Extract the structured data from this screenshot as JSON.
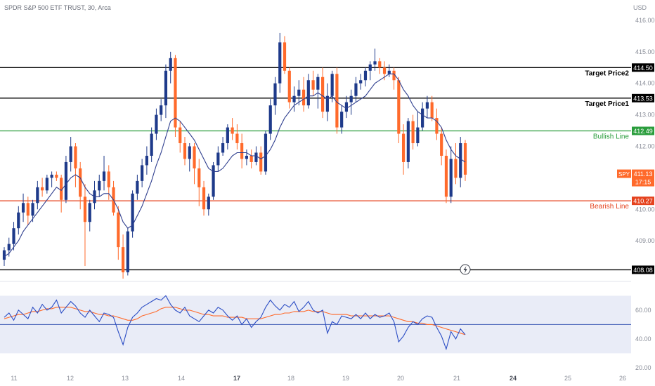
{
  "header": {
    "symbol_line": "SPDR S&P 500 ETF TRUST, 30, Arca",
    "currency": "USD"
  },
  "colors": {
    "up": "#1e3a8a",
    "down": "#ff6a2b",
    "ma": "#2f3f8f",
    "rsi": "#2a4cc4",
    "rsi_ma": "#ff6a2b",
    "target": "#000000",
    "bullish": "#2a9d3c",
    "bearish": "#e5421d",
    "rsi_band": "#e9ecf7",
    "price_tag": "#ff6a2b"
  },
  "chart_data": [
    {
      "type": "candlestick",
      "title": "",
      "ylim": [
        407.8,
        416.2
      ],
      "y_ticks": [
        "416.00",
        "415.00",
        "414.00",
        "413.00",
        "412.00",
        "411.00",
        "410.00",
        "409.00"
      ],
      "x_ticks": [
        "11",
        "12",
        "13",
        "14",
        "17",
        "18",
        "19",
        "20",
        "21",
        "24",
        "25",
        "26"
      ],
      "grid": false,
      "candles": [
        [
          408.4,
          408.8,
          408.2,
          408.7
        ],
        [
          408.7,
          409.1,
          408.5,
          408.9
        ],
        [
          408.9,
          409.6,
          408.7,
          409.4
        ],
        [
          409.4,
          410.1,
          409.2,
          409.9
        ],
        [
          409.9,
          410.5,
          409.6,
          410.2
        ],
        [
          410.2,
          410.4,
          409.5,
          409.8
        ],
        [
          409.8,
          410.3,
          409.6,
          410.2
        ],
        [
          410.2,
          410.9,
          410.0,
          410.7
        ],
        [
          410.7,
          411.0,
          410.4,
          410.6
        ],
        [
          410.6,
          411.1,
          410.5,
          411.0
        ],
        [
          411.0,
          411.2,
          410.7,
          411.1
        ],
        [
          411.1,
          411.2,
          410.9,
          411.0
        ],
        [
          411.0,
          411.1,
          409.9,
          410.3
        ],
        [
          410.3,
          411.7,
          410.2,
          411.5
        ],
        [
          411.5,
          412.3,
          411.2,
          412.0
        ],
        [
          412.0,
          412.1,
          410.7,
          411.3
        ],
        [
          411.3,
          411.5,
          410.0,
          410.4
        ],
        [
          410.4,
          410.8,
          408.2,
          409.6
        ],
        [
          409.6,
          410.3,
          409.3,
          410.2
        ],
        [
          410.2,
          410.9,
          410.0,
          410.6
        ],
        [
          410.6,
          411.1,
          410.4,
          410.9
        ],
        [
          410.9,
          411.7,
          410.6,
          411.2
        ],
        [
          411.2,
          411.4,
          410.3,
          410.7
        ],
        [
          410.7,
          410.9,
          409.8,
          409.9
        ],
        [
          409.9,
          410.1,
          408.4,
          408.8
        ],
        [
          408.8,
          409.2,
          407.8,
          408.0
        ],
        [
          408.0,
          409.4,
          407.9,
          409.3
        ],
        [
          409.3,
          410.6,
          409.1,
          410.5
        ],
        [
          410.5,
          411.1,
          410.3,
          410.9
        ],
        [
          410.9,
          411.6,
          410.7,
          411.4
        ],
        [
          411.4,
          412.0,
          411.1,
          411.7
        ],
        [
          411.7,
          412.6,
          411.5,
          412.4
        ],
        [
          412.4,
          413.2,
          412.2,
          413.0
        ],
        [
          413.0,
          413.5,
          412.8,
          413.3
        ],
        [
          413.3,
          414.6,
          412.9,
          414.4
        ],
        [
          414.4,
          415.0,
          414.0,
          414.8
        ],
        [
          414.8,
          414.9,
          412.3,
          412.6
        ],
        [
          412.6,
          412.8,
          411.8,
          412.1
        ],
        [
          412.1,
          412.3,
          411.4,
          411.6
        ],
        [
          411.6,
          412.1,
          411.2,
          412.0
        ],
        [
          412.0,
          412.1,
          410.8,
          411.3
        ],
        [
          411.3,
          411.6,
          410.1,
          410.7
        ],
        [
          410.7,
          410.9,
          409.8,
          410.0
        ],
        [
          410.0,
          410.5,
          409.8,
          410.4
        ],
        [
          410.4,
          411.5,
          410.3,
          411.4
        ],
        [
          411.4,
          412.0,
          411.2,
          411.8
        ],
        [
          411.8,
          412.3,
          411.7,
          412.1
        ],
        [
          412.1,
          412.7,
          411.9,
          412.6
        ],
        [
          412.6,
          412.9,
          412.2,
          412.4
        ],
        [
          412.4,
          412.7,
          411.9,
          412.1
        ],
        [
          412.1,
          412.4,
          411.3,
          411.6
        ],
        [
          411.6,
          411.9,
          411.4,
          411.7
        ],
        [
          411.7,
          411.9,
          411.3,
          411.5
        ],
        [
          411.5,
          412.0,
          411.4,
          411.8
        ],
        [
          411.8,
          412.0,
          411.1,
          411.2
        ],
        [
          411.2,
          412.5,
          411.1,
          412.4
        ],
        [
          412.4,
          413.5,
          412.2,
          413.3
        ],
        [
          413.3,
          414.2,
          413.0,
          414.0
        ],
        [
          414.0,
          415.6,
          413.7,
          415.3
        ],
        [
          415.3,
          415.5,
          414.3,
          414.4
        ],
        [
          414.4,
          414.5,
          413.2,
          413.4
        ],
        [
          413.4,
          413.9,
          413.1,
          413.6
        ],
        [
          413.6,
          414.1,
          413.3,
          413.8
        ],
        [
          413.8,
          414.2,
          413.1,
          413.3
        ],
        [
          413.3,
          414.3,
          413.2,
          414.1
        ],
        [
          414.1,
          414.4,
          413.6,
          413.8
        ],
        [
          413.8,
          414.3,
          413.2,
          414.2
        ],
        [
          414.2,
          414.5,
          412.9,
          413.1
        ],
        [
          413.1,
          414.0,
          412.8,
          413.6
        ],
        [
          413.6,
          414.4,
          413.4,
          414.3
        ],
        [
          414.3,
          414.5,
          412.4,
          412.6
        ],
        [
          412.6,
          413.3,
          412.4,
          413.1
        ],
        [
          413.1,
          413.6,
          412.9,
          413.4
        ],
        [
          413.4,
          413.8,
          413.0,
          413.6
        ],
        [
          413.6,
          414.2,
          413.4,
          414.0
        ],
        [
          414.0,
          414.3,
          413.8,
          414.1
        ],
        [
          414.1,
          414.5,
          413.9,
          414.4
        ],
        [
          414.4,
          414.7,
          414.1,
          414.6
        ],
        [
          414.6,
          415.1,
          414.4,
          414.7
        ],
        [
          414.7,
          414.8,
          414.3,
          414.5
        ],
        [
          414.5,
          414.7,
          414.1,
          414.3
        ],
        [
          414.3,
          414.6,
          414.2,
          414.4
        ],
        [
          414.4,
          414.5,
          413.8,
          414.1
        ],
        [
          414.1,
          414.2,
          412.1,
          412.4
        ],
        [
          412.4,
          412.7,
          411.1,
          411.5
        ],
        [
          411.5,
          412.9,
          411.3,
          412.8
        ],
        [
          412.8,
          413.0,
          411.9,
          412.1
        ],
        [
          412.1,
          413.1,
          412.0,
          412.6
        ],
        [
          412.6,
          413.4,
          412.5,
          413.2
        ],
        [
          413.2,
          413.6,
          412.9,
          413.4
        ],
        [
          413.4,
          413.6,
          412.8,
          412.9
        ],
        [
          412.9,
          413.2,
          412.2,
          412.4
        ],
        [
          412.4,
          412.6,
          411.4,
          411.7
        ],
        [
          411.7,
          411.9,
          410.2,
          410.4
        ],
        [
          410.4,
          412.0,
          410.2,
          411.6
        ],
        [
          411.6,
          412.1,
          410.8,
          411.0
        ],
        [
          411.0,
          412.3,
          410.7,
          412.1
        ],
        [
          412.1,
          412.2,
          410.9,
          411.1
        ]
      ],
      "ma_line": [
        408.5,
        408.6,
        408.8,
        409.0,
        409.3,
        409.5,
        409.7,
        409.9,
        410.1,
        410.3,
        410.5,
        410.7,
        410.6,
        410.8,
        411.0,
        411.1,
        411.0,
        410.7,
        410.5,
        410.4,
        410.4,
        410.5,
        410.5,
        410.3,
        410.0,
        409.6,
        409.4,
        409.5,
        409.8,
        410.1,
        410.5,
        410.9,
        411.4,
        411.8,
        412.3,
        412.8,
        412.9,
        412.8,
        412.6,
        412.4,
        412.2,
        411.9,
        411.6,
        411.3,
        411.2,
        411.2,
        411.3,
        411.5,
        411.7,
        411.8,
        411.8,
        411.8,
        411.7,
        411.7,
        411.6,
        411.7,
        411.9,
        412.2,
        412.6,
        412.9,
        413.1,
        413.3,
        413.4,
        413.5,
        413.6,
        413.6,
        413.7,
        413.6,
        413.5,
        413.6,
        413.4,
        413.3,
        413.2,
        413.3,
        413.4,
        413.5,
        413.6,
        413.8,
        414.0,
        414.1,
        414.2,
        414.3,
        414.3,
        414.1,
        413.8,
        413.6,
        413.3,
        413.1,
        413.0,
        412.9,
        412.9,
        412.8,
        412.6,
        412.2,
        411.9,
        411.7,
        411.6,
        411.5
      ],
      "levels": [
        {
          "label": "Target Price2",
          "value": "414.50",
          "price": 414.5,
          "kind": "target"
        },
        {
          "label": "Target Price1",
          "value": "413.53",
          "price": 413.53,
          "kind": "target"
        },
        {
          "label": "Bullish Line",
          "value": "412.49",
          "price": 412.49,
          "kind": "bullish"
        },
        {
          "label": "Bearish Line",
          "value": "410.27",
          "price": 410.27,
          "kind": "bearish"
        },
        {
          "label": "",
          "value": "408.08",
          "price": 408.08,
          "kind": "target"
        }
      ],
      "last_price_tag": {
        "symbol": "SPY",
        "price": "411.13",
        "price_value": 411.13,
        "countdown": "17:15"
      }
    },
    {
      "type": "line",
      "title": "",
      "ylim": [
        18,
        78
      ],
      "y_ticks": [
        "60.00",
        "40.00",
        "20.00"
      ],
      "band": [
        30,
        70
      ],
      "midline": 50,
      "series": [
        {
          "values": [
            55,
            58,
            53,
            60,
            57,
            54,
            62,
            58,
            64,
            60,
            62,
            67,
            58,
            62,
            66,
            63,
            58,
            55,
            60,
            56,
            52,
            58,
            57,
            55,
            45,
            36,
            48,
            55,
            58,
            62,
            64,
            66,
            68,
            67,
            70,
            64,
            60,
            58,
            62,
            56,
            54,
            52,
            56,
            60,
            58,
            62,
            60,
            56,
            53,
            56,
            50,
            54,
            48,
            52,
            55,
            62,
            67,
            63,
            60,
            64,
            62,
            66,
            59,
            62,
            66,
            60,
            58,
            60,
            44,
            52,
            50,
            56,
            55,
            54,
            57,
            54,
            58,
            54,
            57,
            55,
            56,
            58,
            52,
            38,
            42,
            48,
            52,
            50,
            54,
            56,
            55,
            48,
            42,
            33,
            45,
            40,
            47,
            43
          ]
        },
        {
          "values": [
            54,
            55,
            56,
            57,
            57,
            58,
            59,
            59,
            60,
            61,
            61,
            62,
            62,
            62,
            62,
            61,
            60,
            59,
            59,
            58,
            57,
            57,
            56,
            56,
            55,
            54,
            53,
            53,
            54,
            56,
            57,
            58,
            59,
            61,
            62,
            62,
            62,
            61,
            60,
            60,
            59,
            58,
            57,
            57,
            56,
            56,
            56,
            55,
            55,
            55,
            55,
            54,
            54,
            54,
            54,
            55,
            56,
            57,
            57,
            58,
            58,
            59,
            59,
            59,
            60,
            59,
            59,
            59,
            58,
            57,
            57,
            57,
            57,
            56,
            56,
            56,
            56,
            56,
            56,
            56,
            56,
            56,
            55,
            54,
            53,
            52,
            52,
            51,
            51,
            50,
            50,
            49,
            48,
            47,
            46,
            45,
            44,
            43
          ]
        }
      ]
    }
  ]
}
